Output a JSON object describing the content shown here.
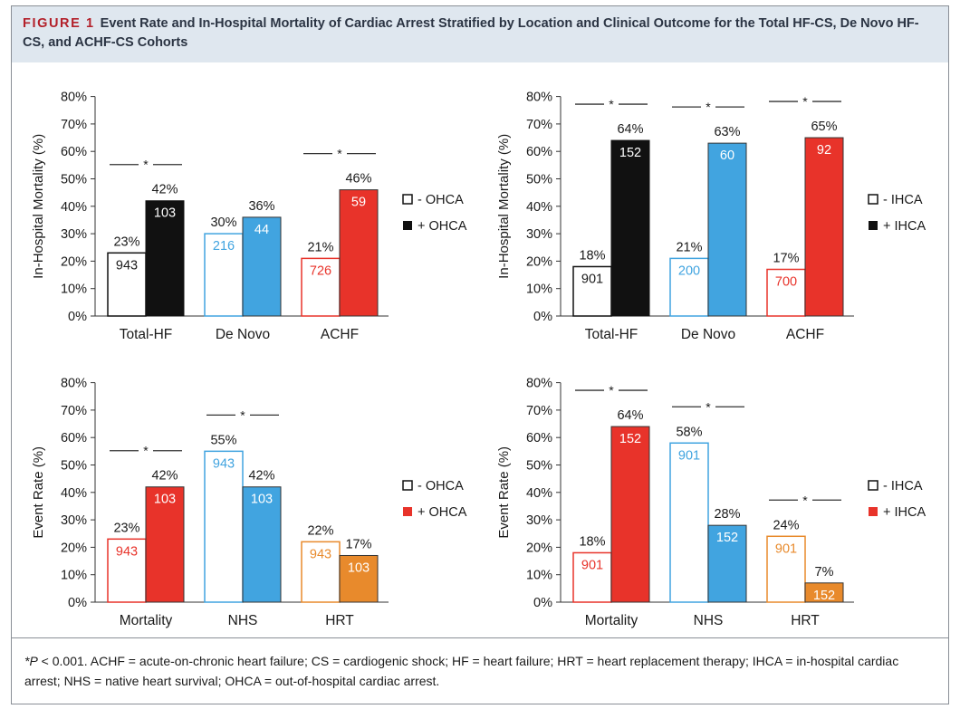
{
  "figure": {
    "label": "FIGURE 1",
    "title": "Event Rate and In-Hospital Mortality of Cardiac Arrest Stratified by Location and Clinical Outcome for the Total HF-CS, De Novo HF-CS, and ACHF-CS Cohorts"
  },
  "footnote": {
    "p_symbol": "*P",
    "text": " < 0.001. ACHF = acute-on-chronic heart failure; CS = cardiogenic shock; HF = heart failure; HRT = heart replacement therapy; IHCA = in-hospital cardiac arrest; NHS = native heart survival; OHCA = out-of-hospital cardiac arrest."
  },
  "colors": {
    "black": "#111111",
    "blue": "#41a4e0",
    "red": "#e8332a",
    "orange": "#e88a2c",
    "text": "#1a1a1a"
  },
  "chart_data": [
    {
      "type": "bar",
      "position": "top-left",
      "ylabel": "In-Hospital Mortality (%)",
      "ylim": [
        0,
        80
      ],
      "yticks": [
        "0%",
        "10%",
        "20%",
        "30%",
        "40%",
        "50%",
        "60%",
        "70%",
        "80%"
      ],
      "categories": [
        "Total-HF",
        "De Novo",
        "ACHF"
      ],
      "colors": [
        "black",
        "blue",
        "red"
      ],
      "legend": [
        "- OHCA",
        "+ OHCA"
      ],
      "legend_colors": [
        "black",
        "black"
      ],
      "values_minus": [
        23,
        30,
        21
      ],
      "values_plus": [
        42,
        36,
        46
      ],
      "labels_minus": [
        "23%",
        "30%",
        "21%"
      ],
      "labels_plus": [
        "42%",
        "36%",
        "46%"
      ],
      "counts_minus": [
        "943",
        "216",
        "726"
      ],
      "counts_plus": [
        "103",
        "44",
        "59"
      ],
      "significance": [
        true,
        false,
        true
      ],
      "sig_marker": "*"
    },
    {
      "type": "bar",
      "position": "top-right",
      "ylabel": "In-Hospital Mortality (%)",
      "ylim": [
        0,
        80
      ],
      "yticks": [
        "0%",
        "10%",
        "20%",
        "30%",
        "40%",
        "50%",
        "60%",
        "70%",
        "80%"
      ],
      "categories": [
        "Total-HF",
        "De Novo",
        "ACHF"
      ],
      "colors": [
        "black",
        "blue",
        "red"
      ],
      "legend": [
        "- IHCA",
        "+ IHCA"
      ],
      "legend_colors": [
        "black",
        "black"
      ],
      "values_minus": [
        18,
        21,
        17
      ],
      "values_plus": [
        64,
        63,
        65
      ],
      "labels_minus": [
        "18%",
        "21%",
        "17%"
      ],
      "labels_plus": [
        "64%",
        "63%",
        "65%"
      ],
      "counts_minus": [
        "901",
        "200",
        "700"
      ],
      "counts_plus": [
        "152",
        "60",
        "92"
      ],
      "significance": [
        true,
        true,
        true
      ],
      "sig_marker": "*"
    },
    {
      "type": "bar",
      "position": "bottom-left",
      "ylabel": "Event Rate (%)",
      "ylim": [
        0,
        80
      ],
      "yticks": [
        "0%",
        "10%",
        "20%",
        "30%",
        "40%",
        "50%",
        "60%",
        "70%",
        "80%"
      ],
      "categories": [
        "Mortality",
        "NHS",
        "HRT"
      ],
      "colors": [
        "red",
        "blue",
        "orange"
      ],
      "legend": [
        "- OHCA",
        "+ OHCA"
      ],
      "legend_colors": [
        "black",
        "red"
      ],
      "values_minus": [
        23,
        55,
        22
      ],
      "values_plus": [
        42,
        42,
        17
      ],
      "labels_minus": [
        "23%",
        "55%",
        "22%"
      ],
      "labels_plus": [
        "42%",
        "42%",
        "17%"
      ],
      "counts_minus": [
        "943",
        "943",
        "943"
      ],
      "counts_plus": [
        "103",
        "103",
        "103"
      ],
      "significance": [
        true,
        true,
        false
      ],
      "sig_marker": "*"
    },
    {
      "type": "bar",
      "position": "bottom-right",
      "ylabel": "Event Rate (%)",
      "ylim": [
        0,
        80
      ],
      "yticks": [
        "0%",
        "10%",
        "20%",
        "30%",
        "40%",
        "50%",
        "60%",
        "70%",
        "80%"
      ],
      "categories": [
        "Mortality",
        "NHS",
        "HRT"
      ],
      "colors": [
        "red",
        "blue",
        "orange"
      ],
      "legend": [
        "- IHCA",
        "+ IHCA"
      ],
      "legend_colors": [
        "black",
        "red"
      ],
      "values_minus": [
        18,
        58,
        24
      ],
      "values_plus": [
        64,
        28,
        7
      ],
      "labels_minus": [
        "18%",
        "58%",
        "24%"
      ],
      "labels_plus": [
        "64%",
        "28%",
        "7%"
      ],
      "counts_minus": [
        "901",
        "901",
        "901"
      ],
      "counts_plus": [
        "152",
        "152",
        "152"
      ],
      "significance": [
        true,
        true,
        true
      ],
      "sig_marker": "*"
    }
  ]
}
